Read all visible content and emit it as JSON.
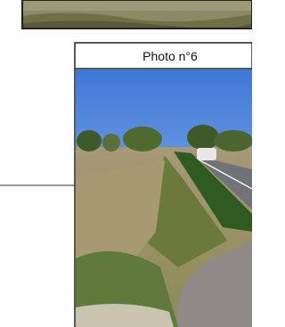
{
  "caption": "Photo n°6"
}
